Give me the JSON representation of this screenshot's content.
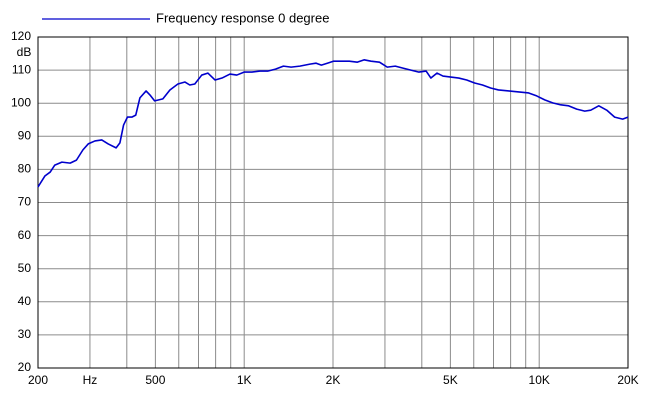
{
  "chart_data": {
    "type": "line",
    "ylabel": "dB",
    "xscale": "log",
    "grid": true,
    "legend": "top-left",
    "xlim": [
      200,
      20000
    ],
    "ylim": [
      20,
      120
    ],
    "yticks": [
      20,
      30,
      40,
      50,
      60,
      70,
      80,
      90,
      100,
      110,
      120
    ],
    "xticks": [
      200,
      {
        "value": 300,
        "label": "Hz"
      },
      500,
      {
        "value": 1000,
        "label": "1K"
      },
      {
        "value": 2000,
        "label": "2K"
      },
      {
        "value": 5000,
        "label": "5K"
      },
      {
        "value": 10000,
        "label": "10K"
      },
      {
        "value": 20000,
        "label": "20K"
      }
    ],
    "x_minor_ticks": [
      400,
      600,
      700,
      800,
      900,
      3000,
      4000,
      6000,
      7000,
      8000,
      9000
    ],
    "x": [
      200,
      211,
      220,
      228,
      241,
      257,
      270,
      284,
      296,
      312,
      329,
      346,
      368,
      379,
      390,
      402,
      416,
      429,
      443,
      465,
      479,
      497,
      530,
      560,
      596,
      630,
      654,
      680,
      718,
      753,
      797,
      841,
      895,
      944,
      999,
      1062,
      1130,
      1201,
      1277,
      1358,
      1442,
      1544,
      1671,
      1750,
      1826,
      1919,
      2011,
      2138,
      2272,
      2419,
      2549,
      2691,
      2875,
      3055,
      3252,
      3453,
      3673,
      3911,
      4137,
      4294,
      4503,
      4718,
      5018,
      5338,
      5679,
      6040,
      6424,
      6844,
      7273,
      7881,
      8522,
      9211,
      9807,
      10440,
      11110,
      11830,
      12590,
      13400,
      14270,
      14950,
      15920,
      16940,
      18020,
      19180,
      20000
    ],
    "series": [
      {
        "name": "Frequency response 0 degree",
        "color": "#0000cc",
        "values": [
          74.7,
          78.0,
          79.2,
          81.3,
          82.2,
          81.9,
          82.8,
          85.9,
          87.7,
          88.6,
          88.9,
          87.7,
          86.5,
          88.0,
          93.4,
          95.8,
          95.8,
          96.4,
          101.6,
          103.7,
          102.5,
          100.7,
          101.3,
          104.0,
          105.8,
          106.4,
          105.5,
          105.8,
          108.5,
          109.1,
          107.0,
          107.6,
          108.8,
          108.5,
          109.4,
          109.4,
          109.7,
          109.7,
          110.3,
          111.2,
          110.9,
          111.2,
          111.8,
          112.1,
          111.5,
          112.1,
          112.7,
          112.7,
          112.7,
          112.4,
          113.1,
          112.7,
          112.4,
          110.9,
          111.2,
          110.6,
          110.0,
          109.4,
          109.7,
          107.6,
          109.1,
          108.2,
          107.9,
          107.6,
          107.0,
          106.1,
          105.5,
          104.6,
          104.0,
          103.7,
          103.4,
          103.1,
          102.2,
          101.0,
          100.1,
          99.5,
          99.2,
          98.2,
          97.6,
          97.9,
          99.2,
          97.9,
          95.8,
          95.2,
          95.8
        ]
      }
    ]
  }
}
